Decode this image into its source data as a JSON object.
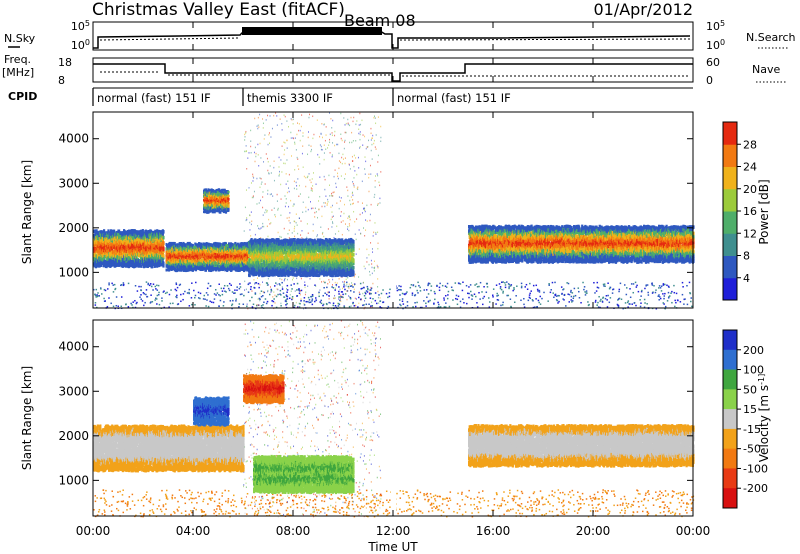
{
  "header": {
    "station": "Christmas Valley East (fitACF)",
    "beam": "Beam 08",
    "date": "01/Apr/2012"
  },
  "noise_panel": {
    "left_label": "N.Sky",
    "left_ticks": [
      "10^5",
      "10^0"
    ],
    "right_label": "N.Search",
    "right_ticks": [
      "10^5",
      "10^0"
    ]
  },
  "freq_panel": {
    "left_label_line1": "Freq.",
    "left_label_line2": "[MHz]",
    "left_ticks": [
      "18",
      "8"
    ],
    "right_label": "Nave",
    "right_ticks": [
      "60",
      "0"
    ]
  },
  "cpid": {
    "label": "CPID",
    "segments": [
      {
        "name": "normal (fast) 151 IF",
        "start_hour": 0,
        "end_hour": 6
      },
      {
        "name": "themis 3300 IF",
        "start_hour": 6,
        "end_hour": 12
      },
      {
        "name": "normal (fast) 151 IF",
        "start_hour": 12,
        "end_hour": 24
      }
    ]
  },
  "chart_data": [
    {
      "type": "heatmap",
      "title": "",
      "ylabel": "Slant Range [km]",
      "xlabel": "Time UT",
      "yticks": [
        "1000",
        "2000",
        "3000",
        "4000"
      ],
      "ylim": [
        200,
        4600
      ],
      "xlim": [
        0,
        24
      ],
      "colorbar": {
        "label": "Power [dB]",
        "ticks": [
          "4",
          "8",
          "12",
          "16",
          "20",
          "24",
          "28"
        ],
        "colors": [
          "#1f1fd9",
          "#2e58c0",
          "#3f8f8f",
          "#4fae6a",
          "#9ccb3b",
          "#f0b21b",
          "#f27a12",
          "#e52a10"
        ]
      },
      "bands": [
        {
          "start_hour": 0.0,
          "end_hour": 2.8,
          "range_km": [
            1200,
            2000
          ],
          "level": "high"
        },
        {
          "start_hour": 2.9,
          "end_hour": 6.2,
          "range_km": [
            1100,
            1700
          ],
          "level": "high"
        },
        {
          "start_hour": 4.4,
          "end_hour": 5.4,
          "range_km": [
            2400,
            2900
          ],
          "level": "high"
        },
        {
          "start_hour": 6.2,
          "end_hour": 10.4,
          "range_km": [
            1000,
            1800
          ],
          "level": "medium"
        },
        {
          "start_hour": 15.0,
          "end_hour": 24.0,
          "range_km": [
            1300,
            2100
          ],
          "level": "high"
        }
      ]
    },
    {
      "type": "heatmap",
      "title": "",
      "ylabel": "Slant Range [km]",
      "xlabel": "Time UT",
      "yticks": [
        "1000",
        "2000",
        "3000",
        "4000"
      ],
      "ylim": [
        200,
        4600
      ],
      "xlim": [
        0,
        24
      ],
      "xticks": [
        "00:00",
        "04:00",
        "08:00",
        "12:00",
        "16:00",
        "20:00",
        "00:00"
      ],
      "colorbar": {
        "label": "Velocity [m s^-1]",
        "ticks": [
          "200",
          "100",
          "50",
          "15",
          "-15",
          "-50",
          "-100",
          "-200"
        ],
        "colors": [
          "#1f2fc9",
          "#2f6fd0",
          "#3fa63f",
          "#8ad24a",
          "#c8c8c8",
          "#f2a21a",
          "#f27a12",
          "#e83a14",
          "#d81010"
        ]
      },
      "bands": [
        {
          "start_hour": 0.0,
          "end_hour": 6.0,
          "range_km": [
            1300,
            2300
          ],
          "level": "-15..15"
        },
        {
          "start_hour": 4.0,
          "end_hour": 5.4,
          "range_km": [
            2300,
            2900
          ],
          "level": "100..200"
        },
        {
          "start_hour": 6.0,
          "end_hour": 7.6,
          "range_km": [
            2800,
            3400
          ],
          "level": "-100..-200"
        },
        {
          "start_hour": 6.4,
          "end_hour": 10.4,
          "range_km": [
            800,
            1600
          ],
          "level": "15..50"
        },
        {
          "start_hour": 15.0,
          "end_hour": 24.0,
          "range_km": [
            1400,
            2300
          ],
          "level": "-15..15"
        }
      ]
    }
  ]
}
